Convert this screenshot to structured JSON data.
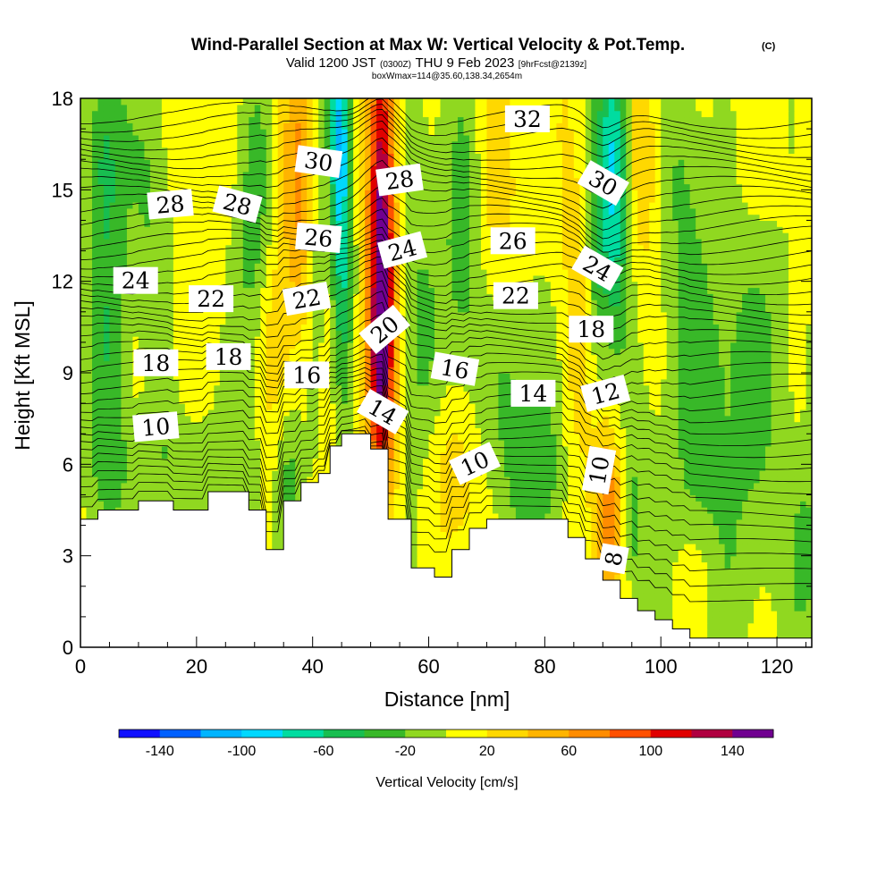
{
  "title": {
    "main": "Wind-Parallel Section at Max W: Vertical Velocity & Pot.Temp.",
    "corner": "(C)",
    "valid_prefix": "Valid 1200 JST",
    "valid_utc": "(0300Z)",
    "valid_suffix": "THU 9 Feb 2023",
    "forecast": "[9hrFcst@2139z]",
    "box": "boxWmax=114@35.60,138.34,2654m"
  },
  "chart_data": {
    "type": "heatmap",
    "xlabel": "Distance [nm]",
    "ylabel": "Height [Kft MSL]",
    "xlim": [
      0,
      126
    ],
    "ylim": [
      0,
      18
    ],
    "x_ticks": [
      0,
      20,
      40,
      60,
      80,
      100,
      120
    ],
    "y_ticks": [
      0,
      3,
      6,
      9,
      12,
      15,
      18
    ],
    "colorbar": {
      "label": "Vertical Velocity [cm/s]",
      "bounds": [
        -160,
        160
      ],
      "step": 20,
      "tick_values": [
        -140,
        -100,
        -60,
        -20,
        20,
        60,
        100,
        140
      ],
      "tick_labels": [
        "-140",
        "-100",
        "-60",
        "-20",
        "20",
        "60",
        "100",
        "140"
      ],
      "colors": [
        "#1010ff",
        "#0060ff",
        "#00b4ff",
        "#00d8ff",
        "#00dca0",
        "#18be50",
        "#38b828",
        "#90d820",
        "#ffff00",
        "#ffd800",
        "#ffb400",
        "#ff8c00",
        "#ff5000",
        "#e00000",
        "#b00040",
        "#700090"
      ]
    },
    "terrain": [
      [
        0,
        4.2
      ],
      [
        3,
        4.2
      ],
      [
        3,
        4.5
      ],
      [
        10,
        4.5
      ],
      [
        10,
        4.8
      ],
      [
        16,
        4.8
      ],
      [
        16,
        4.5
      ],
      [
        22,
        4.5
      ],
      [
        22,
        5.1
      ],
      [
        29,
        5.1
      ],
      [
        29,
        4.5
      ],
      [
        32,
        4.5
      ],
      [
        32,
        3.2
      ],
      [
        35,
        3.2
      ],
      [
        35,
        4.8
      ],
      [
        38,
        4.8
      ],
      [
        38,
        5.4
      ],
      [
        41,
        5.4
      ],
      [
        41,
        5.7
      ],
      [
        43,
        5.7
      ],
      [
        43,
        6.6
      ],
      [
        45,
        6.6
      ],
      [
        45,
        7.0
      ],
      [
        50,
        7.0
      ],
      [
        50,
        6.5
      ],
      [
        53,
        6.5
      ],
      [
        53,
        4.2
      ],
      [
        57,
        4.2
      ],
      [
        57,
        2.6
      ],
      [
        61,
        2.6
      ],
      [
        61,
        2.3
      ],
      [
        64,
        2.3
      ],
      [
        64,
        3.2
      ],
      [
        67,
        3.2
      ],
      [
        67,
        3.9
      ],
      [
        70,
        3.9
      ],
      [
        70,
        4.2
      ],
      [
        84,
        4.2
      ],
      [
        84,
        3.6
      ],
      [
        87,
        3.6
      ],
      [
        87,
        2.9
      ],
      [
        90,
        2.9
      ],
      [
        90,
        2.2
      ],
      [
        93,
        2.2
      ],
      [
        93,
        1.6
      ],
      [
        96,
        1.6
      ],
      [
        96,
        1.2
      ],
      [
        99,
        1.2
      ],
      [
        99,
        0.9
      ],
      [
        102,
        0.9
      ],
      [
        102,
        0.6
      ],
      [
        105,
        0.6
      ],
      [
        105,
        0.3
      ],
      [
        126,
        0.3
      ]
    ],
    "fields": [
      {
        "x": 45,
        "y": 14.5,
        "sx": 1.3,
        "sy": 4.5,
        "amp": -90
      },
      {
        "x": 44,
        "y": 17.0,
        "sx": 1.0,
        "sy": 1.5,
        "amp": -50
      },
      {
        "x": 52,
        "y": 13.0,
        "sx": 1.7,
        "sy": 5.5,
        "amp": 150
      },
      {
        "x": 51,
        "y": 9.0,
        "sx": 1.8,
        "sy": 2.2,
        "amp": 40
      },
      {
        "x": 38,
        "y": 15.0,
        "sx": 2.5,
        "sy": 3.5,
        "amp": 55
      },
      {
        "x": 40.5,
        "y": 13.0,
        "sx": 1.2,
        "sy": 4.0,
        "amp": -40
      },
      {
        "x": 92,
        "y": 15.5,
        "sx": 1.8,
        "sy": 3.5,
        "amp": -95
      },
      {
        "x": 89,
        "y": 13.0,
        "sx": 1.2,
        "sy": 3.0,
        "amp": -40
      },
      {
        "x": 97,
        "y": 16.0,
        "sx": 1.8,
        "sy": 2.5,
        "amp": 35
      },
      {
        "x": 91,
        "y": 4.2,
        "sx": 1.8,
        "sy": 2.0,
        "amp": 80
      },
      {
        "x": 95,
        "y": 4.0,
        "sx": 1.2,
        "sy": 1.5,
        "amp": -30
      },
      {
        "x": 5,
        "y": 11.0,
        "sx": 2.5,
        "sy": 6.0,
        "amp": -45
      },
      {
        "x": 3.5,
        "y": 16.5,
        "sx": 2.0,
        "sy": 2.0,
        "amp": -30
      },
      {
        "x": 12,
        "y": 15.0,
        "sx": 2.5,
        "sy": 3.5,
        "amp": -30
      },
      {
        "x": 30,
        "y": 13.5,
        "sx": 2.5,
        "sy": 4.0,
        "amp": -40
      },
      {
        "x": 33,
        "y": 10.0,
        "sx": 2.0,
        "sy": 2.5,
        "amp": 25
      },
      {
        "x": 36,
        "y": 4.5,
        "sx": 1.5,
        "sy": 2.0,
        "amp": -35
      },
      {
        "x": 58,
        "y": 10.0,
        "sx": 3.5,
        "sy": 8.0,
        "amp": -28
      },
      {
        "x": 66,
        "y": 13.0,
        "sx": 2.5,
        "sy": 4.0,
        "amp": -35
      },
      {
        "x": 72,
        "y": 14.0,
        "sx": 2.5,
        "sy": 3.0,
        "amp": 25
      },
      {
        "x": 75,
        "y": 9.5,
        "sx": 5.0,
        "sy": 2.5,
        "amp": -28
      },
      {
        "x": 78,
        "y": 5.5,
        "sx": 4.0,
        "sy": 2.0,
        "amp": -40
      },
      {
        "x": 85,
        "y": 10.0,
        "sx": 2.0,
        "sy": 4.0,
        "amp": 28
      },
      {
        "x": 104,
        "y": 15.5,
        "sx": 3.0,
        "sy": 3.0,
        "amp": -30
      },
      {
        "x": 113,
        "y": 10.0,
        "sx": 8.0,
        "sy": 3.0,
        "amp": -30
      },
      {
        "x": 108,
        "y": 4.0,
        "sx": 10.0,
        "sy": 3.5,
        "amp": -28
      },
      {
        "x": 105,
        "y": 2.0,
        "sx": 3.0,
        "sy": 1.5,
        "amp": 25
      },
      {
        "x": 125,
        "y": 3.0,
        "sx": 2.0,
        "sy": 2.0,
        "amp": -30
      },
      {
        "x": 18,
        "y": 6.0,
        "sx": 10.0,
        "sy": 1.5,
        "amp": -25
      },
      {
        "x": 63,
        "y": 5.5,
        "sx": 4.0,
        "sy": 2.0,
        "amp": 30
      }
    ],
    "theta_contours": [
      {
        "value": "32",
        "x": 77,
        "y": 17.3,
        "angle": 0
      },
      {
        "value": "30",
        "x": 41,
        "y": 15.9,
        "angle": 8
      },
      {
        "value": "28",
        "x": 15.5,
        "y": 14.5,
        "angle": -5
      },
      {
        "value": "28",
        "x": 27,
        "y": 14.5,
        "angle": 15
      },
      {
        "value": "28",
        "x": 55,
        "y": 15.3,
        "angle": -8
      },
      {
        "value": "30",
        "x": 90,
        "y": 15.2,
        "angle": 30
      },
      {
        "value": "26",
        "x": 41,
        "y": 13.4,
        "angle": 5
      },
      {
        "value": "24",
        "x": 55.5,
        "y": 13.0,
        "angle": -15
      },
      {
        "value": "26",
        "x": 74.5,
        "y": 13.3,
        "angle": 0
      },
      {
        "value": "24",
        "x": 89,
        "y": 12.4,
        "angle": 30
      },
      {
        "value": "24",
        "x": 9.5,
        "y": 12.0,
        "angle": 0
      },
      {
        "value": "22",
        "x": 22.5,
        "y": 11.4,
        "angle": 0
      },
      {
        "value": "22",
        "x": 39,
        "y": 11.4,
        "angle": -10
      },
      {
        "value": "22",
        "x": 75,
        "y": 11.5,
        "angle": 0
      },
      {
        "value": "20",
        "x": 52.5,
        "y": 10.4,
        "angle": -40
      },
      {
        "value": "18",
        "x": 88,
        "y": 10.4,
        "angle": 0
      },
      {
        "value": "18",
        "x": 13,
        "y": 9.3,
        "angle": 0
      },
      {
        "value": "18",
        "x": 25.5,
        "y": 9.5,
        "angle": 0
      },
      {
        "value": "16",
        "x": 39,
        "y": 8.9,
        "angle": 0
      },
      {
        "value": "16",
        "x": 64.5,
        "y": 9.1,
        "angle": 10
      },
      {
        "value": "14",
        "x": 52,
        "y": 7.7,
        "angle": 30
      },
      {
        "value": "14",
        "x": 78,
        "y": 8.3,
        "angle": 0
      },
      {
        "value": "12",
        "x": 90.5,
        "y": 8.3,
        "angle": -15
      },
      {
        "value": "10",
        "x": 13,
        "y": 7.2,
        "angle": -5
      },
      {
        "value": "10",
        "x": 68,
        "y": 6.0,
        "angle": -25
      },
      {
        "value": "10",
        "x": 89.5,
        "y": 5.8,
        "angle": -80
      },
      {
        "value": "8",
        "x": 92,
        "y": 2.9,
        "angle": -80
      }
    ]
  }
}
